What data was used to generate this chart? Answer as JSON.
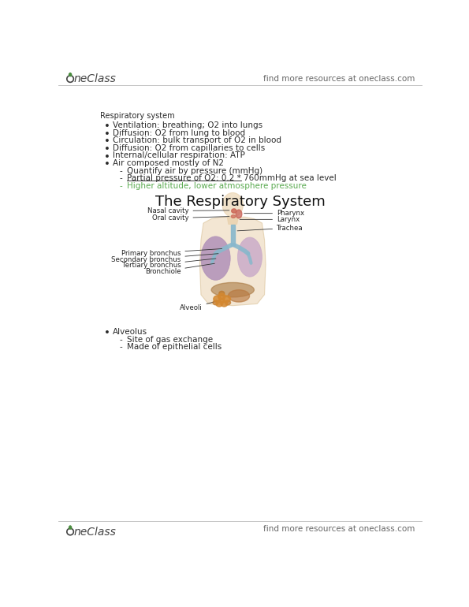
{
  "bg_color": "#ffffff",
  "header_right_text": "find more resources at oneclass.com",
  "footer_right_text": "find more resources at oneclass.com",
  "logo_color": "#4a8c3f",
  "section_title": "Respiratory system",
  "bullets": [
    "Ventilation: breathing; O2 into lungs",
    "Diffusion: O2 from lung to blood",
    "Circulation: bulk transport of O2 in blood",
    "Diffusion: O2 from capillaries to cells",
    "Internal/cellular respiration: ATP",
    "Air composed mostly of N2"
  ],
  "sub_bullets": [
    "Quantify air by pressure (mmHg)",
    "Partial pressure of O2: 0.2 * 760mmHg at sea level",
    "Higher altitude, lower atmosphere pressure"
  ],
  "sub_bullet_underline": [
    false,
    true,
    false
  ],
  "sub_bullet_green": [
    false,
    false,
    true
  ],
  "diagram_title": "The Respiratory System",
  "bottom_bullet": "Alveolus",
  "bottom_sub_bullets": [
    "Site of gas exchange",
    "Made of epithelial cells"
  ],
  "text_color": "#2a2a2a",
  "green_color": "#5aaa50",
  "gray_text": "#666666",
  "diagram_labels": {
    "nasal_cavity": "Nasal cavity",
    "oral_cavity": "Oral cavity",
    "pharynx": "Pharynx",
    "larynx": "Larynx",
    "trachea": "Trachea",
    "primary_bronchus": "Primary bronchus",
    "secondary_bronchus": "Secondary bronchus",
    "tertiary_bronchus": "Tertiary bronchus",
    "bronchiole": "Bronchiole",
    "alveoli": "Alveoli"
  }
}
